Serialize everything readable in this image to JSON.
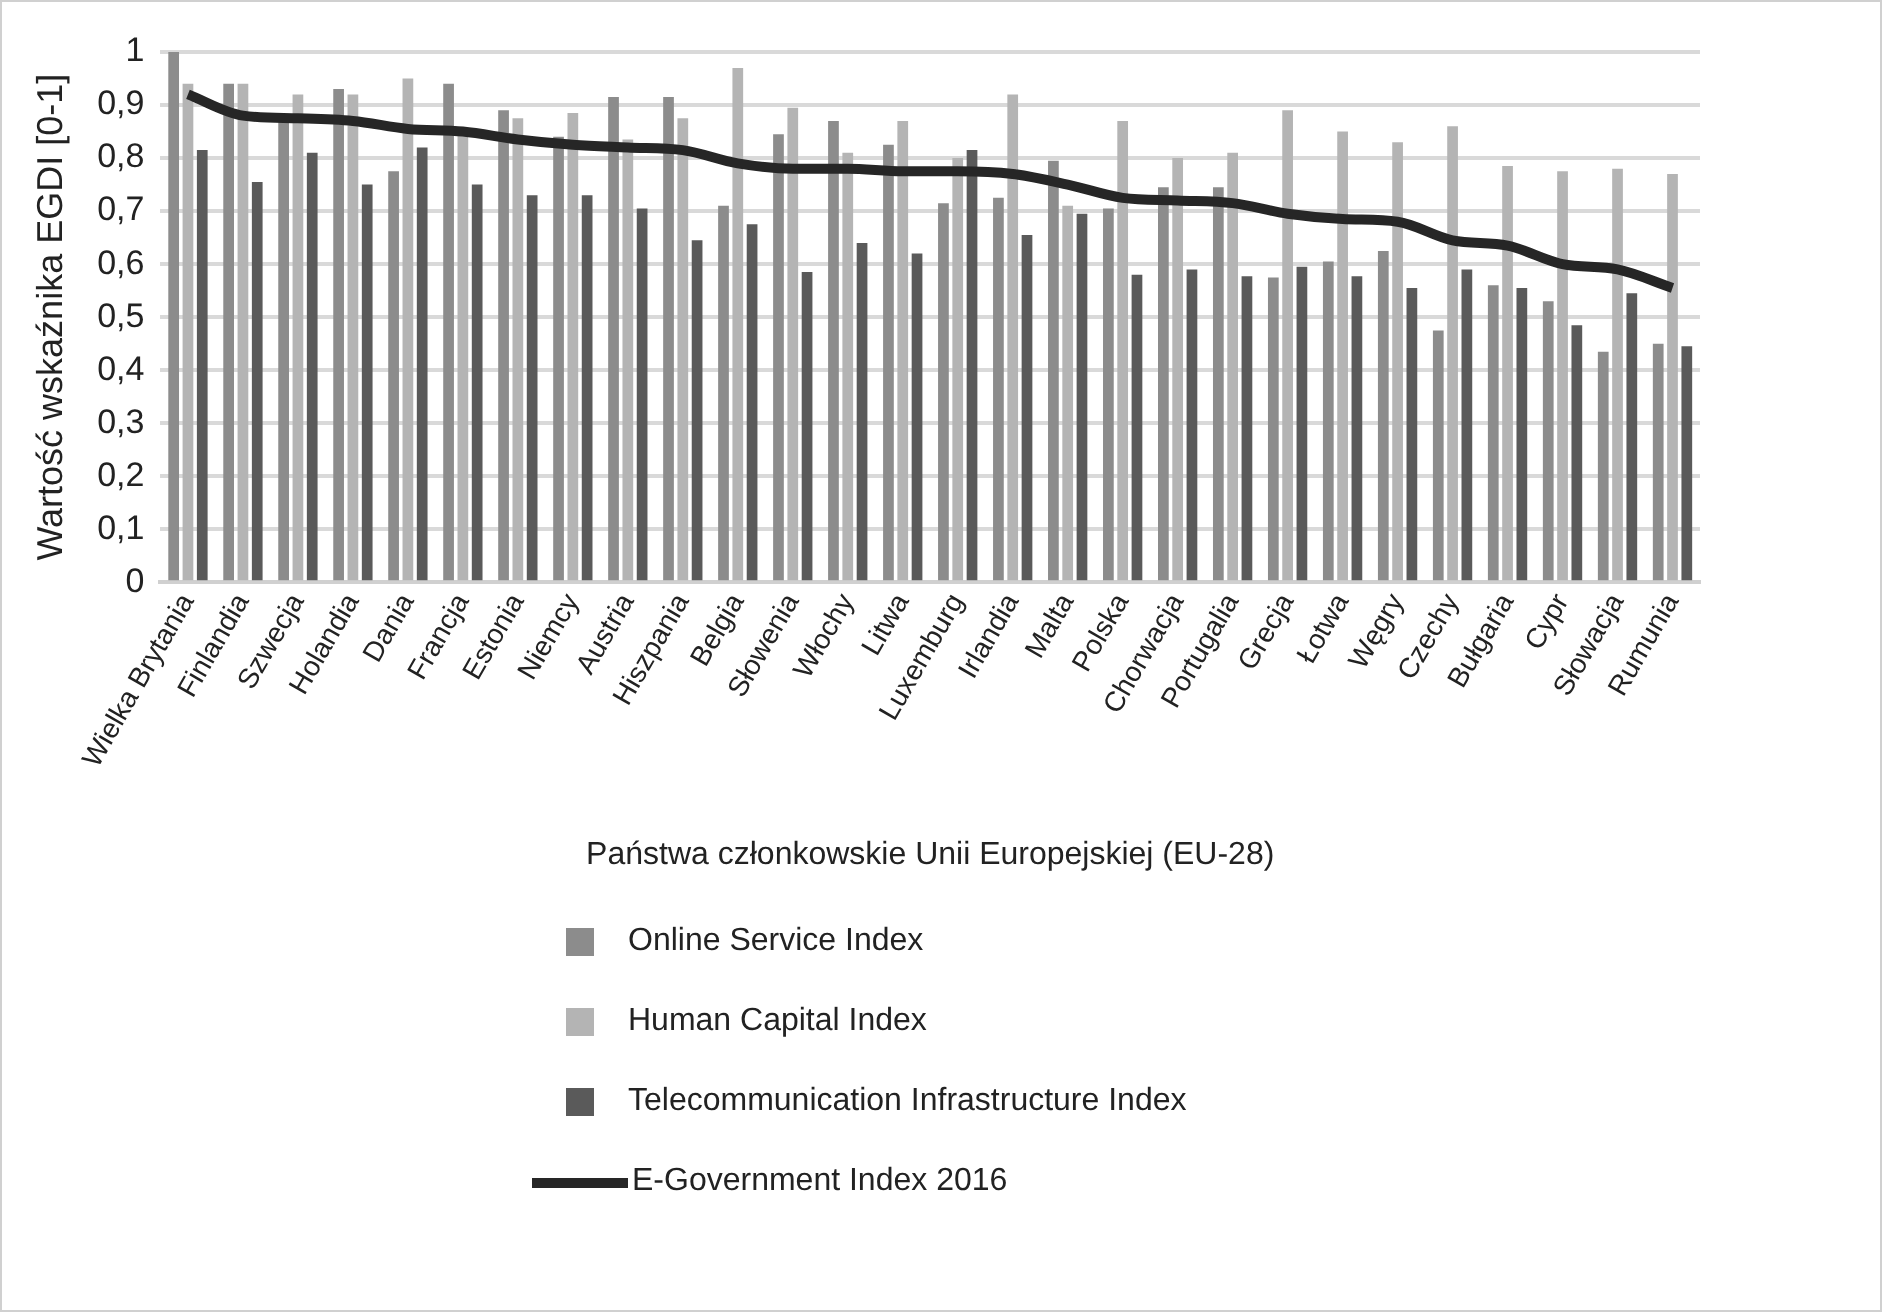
{
  "chart_data": {
    "type": "bar",
    "xlabel": "Państwa członkowskie Unii Europejskiej (EU-28)",
    "ylabel": "Wartość wskaźnika EGDI [0-1]",
    "categories": [
      "Wielka Brytania",
      "Finlandia",
      "Szwecja",
      "Holandia",
      "Dania",
      "Francja",
      "Estonia",
      "Niemcy",
      "Austria",
      "Hiszpania",
      "Belgia",
      "Słowenia",
      "Włochy",
      "Litwa",
      "Luxemburg",
      "Irlandia",
      "Malta",
      "Polska",
      "Chorwacja",
      "Portugalia",
      "Grecja",
      "Łotwa",
      "Węgry",
      "Czechy",
      "Bułgaria",
      "Cypr",
      "Słowacja",
      "Rumunia"
    ],
    "series": [
      {
        "name": "Online Service Index",
        "color": "#8c8c8c",
        "values": [
          1.0,
          0.94,
          0.87,
          0.93,
          0.775,
          0.94,
          0.89,
          0.84,
          0.915,
          0.915,
          0.71,
          0.845,
          0.87,
          0.825,
          0.715,
          0.725,
          0.795,
          0.705,
          0.745,
          0.745,
          0.575,
          0.605,
          0.625,
          0.475,
          0.56,
          0.53,
          0.435,
          0.45
        ]
      },
      {
        "name": "Human Capital Index",
        "color": "#b4b4b4",
        "values": [
          0.94,
          0.94,
          0.92,
          0.92,
          0.95,
          0.85,
          0.875,
          0.885,
          0.835,
          0.875,
          0.97,
          0.895,
          0.81,
          0.87,
          0.8,
          0.92,
          0.71,
          0.87,
          0.8,
          0.81,
          0.89,
          0.85,
          0.83,
          0.86,
          0.785,
          0.775,
          0.78,
          0.77
        ]
      },
      {
        "name": "Telecommunication Infrastructure Index",
        "color": "#5a5a5a",
        "values": [
          0.815,
          0.755,
          0.81,
          0.75,
          0.82,
          0.75,
          0.73,
          0.73,
          0.705,
          0.645,
          0.675,
          0.585,
          0.64,
          0.62,
          0.815,
          0.655,
          0.695,
          0.58,
          0.59,
          0.577,
          0.595,
          0.577,
          0.555,
          0.59,
          0.555,
          0.485,
          0.545,
          0.445
        ]
      },
      {
        "name": "E-Government Index 2016",
        "type": "line",
        "color": "#262626",
        "values": [
          0.92,
          0.88,
          0.875,
          0.87,
          0.855,
          0.85,
          0.835,
          0.825,
          0.82,
          0.815,
          0.79,
          0.78,
          0.78,
          0.775,
          0.775,
          0.77,
          0.75,
          0.725,
          0.72,
          0.715,
          0.695,
          0.685,
          0.68,
          0.645,
          0.635,
          0.6,
          0.59,
          0.555
        ]
      }
    ],
    "ylim": [
      0,
      1
    ],
    "yticks": [
      {
        "value": 0,
        "label": "0"
      },
      {
        "value": 0.1,
        "label": "0,1"
      },
      {
        "value": 0.2,
        "label": "0,2"
      },
      {
        "value": 0.3,
        "label": "0,3"
      },
      {
        "value": 0.4,
        "label": "0,4"
      },
      {
        "value": 0.5,
        "label": "0,5"
      },
      {
        "value": 0.6,
        "label": "0,6"
      },
      {
        "value": 0.7,
        "label": "0,7"
      },
      {
        "value": 0.8,
        "label": "0,8"
      },
      {
        "value": 0.9,
        "label": "0,9"
      },
      {
        "value": 1,
        "label": "1"
      }
    ],
    "grid": "y",
    "legend": "bottom",
    "marker": "none",
    "line_style": "solid"
  }
}
